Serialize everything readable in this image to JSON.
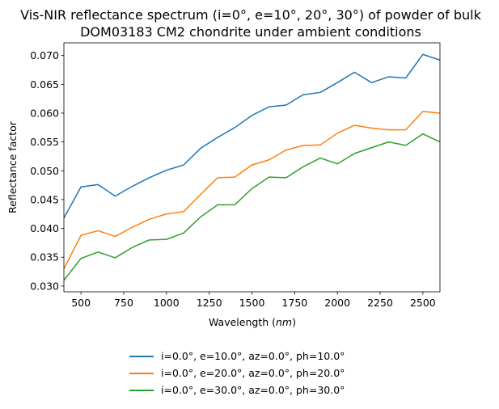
{
  "chart_data": {
    "type": "line",
    "title_line1": "Vis-NIR reflectance spectrum (i=0°, e=10°, 20°, 30°) of powder of bulk",
    "title_line2": "DOM03183 CM2 chondrite under ambient conditions",
    "xlabel": "Wavelength (",
    "xlabel_unit": "nm",
    "xlabel_close": ")",
    "ylabel": "Reflectance factor",
    "xlim": [
      400,
      2600
    ],
    "ylim": [
      0.029,
      0.0722
    ],
    "xticks": [
      500,
      750,
      1000,
      1250,
      1500,
      1750,
      2000,
      2250,
      2500
    ],
    "yticks": [
      "0.030",
      "0.035",
      "0.040",
      "0.045",
      "0.050",
      "0.055",
      "0.060",
      "0.065",
      "0.070"
    ],
    "x": [
      400,
      500,
      600,
      700,
      800,
      900,
      1000,
      1100,
      1200,
      1300,
      1400,
      1500,
      1600,
      1700,
      1800,
      1900,
      2000,
      2100,
      2200,
      2300,
      2400,
      2500,
      2600
    ],
    "series": [
      {
        "name": "i=0.0°, e=10.0°, az=0.0°, ph=10.0°",
        "color": "#1f77b4",
        "values": [
          0.0418,
          0.0472,
          0.0476,
          0.0456,
          0.0473,
          0.0488,
          0.0501,
          0.051,
          0.0539,
          0.0558,
          0.0575,
          0.0596,
          0.0611,
          0.0614,
          0.0632,
          0.0636,
          0.0653,
          0.0671,
          0.0653,
          0.0663,
          0.0661,
          0.0702,
          0.0692
        ]
      },
      {
        "name": "i=0.0°, e=20.0°, az=0.0°, ph=20.0°",
        "color": "#ff7f0e",
        "values": [
          0.033,
          0.0388,
          0.0396,
          0.0386,
          0.0402,
          0.0416,
          0.0425,
          0.0429,
          0.0459,
          0.0488,
          0.0489,
          0.051,
          0.0519,
          0.0536,
          0.0544,
          0.0545,
          0.0565,
          0.0579,
          0.0574,
          0.0571,
          0.0571,
          0.0603,
          0.06
        ]
      },
      {
        "name": "i=0.0°, e=30.0°, az=0.0°, ph=30.0°",
        "color": "#2ca02c",
        "values": [
          0.031,
          0.0348,
          0.0359,
          0.0349,
          0.0367,
          0.038,
          0.0381,
          0.0392,
          0.042,
          0.0441,
          0.0441,
          0.0469,
          0.0489,
          0.0488,
          0.0507,
          0.0522,
          0.0512,
          0.053,
          0.054,
          0.055,
          0.0544,
          0.0564,
          0.055
        ]
      }
    ]
  }
}
